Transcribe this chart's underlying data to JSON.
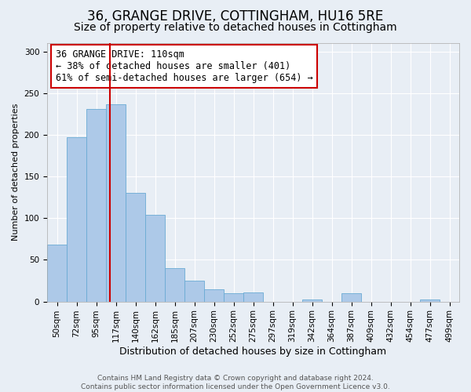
{
  "title": "36, GRANGE DRIVE, COTTINGHAM, HU16 5RE",
  "subtitle": "Size of property relative to detached houses in Cottingham",
  "xlabel": "Distribution of detached houses by size in Cottingham",
  "ylabel": "Number of detached properties",
  "footer_line1": "Contains HM Land Registry data © Crown copyright and database right 2024.",
  "footer_line2": "Contains public sector information licensed under the Open Government Licence v3.0.",
  "annotation_line1": "36 GRANGE DRIVE: 110sqm",
  "annotation_line2": "← 38% of detached houses are smaller (401)",
  "annotation_line3": "61% of semi-detached houses are larger (654) →",
  "bin_labels": [
    "50sqm",
    "72sqm",
    "95sqm",
    "117sqm",
    "140sqm",
    "162sqm",
    "185sqm",
    "207sqm",
    "230sqm",
    "252sqm",
    "275sqm",
    "297sqm",
    "319sqm",
    "342sqm",
    "364sqm",
    "387sqm",
    "409sqm",
    "432sqm",
    "454sqm",
    "477sqm",
    "499sqm"
  ],
  "bar_values": [
    68,
    197,
    231,
    237,
    130,
    104,
    40,
    25,
    15,
    10,
    11,
    0,
    0,
    2,
    0,
    10,
    0,
    0,
    0,
    2,
    0
  ],
  "bar_color": "#adc9e8",
  "bar_edge_color": "#6aaad4",
  "vline_x_index": 3,
  "vline_color": "#cc0000",
  "annotation_box_edge_color": "#cc0000",
  "ylim": [
    0,
    310
  ],
  "background_color": "#e8eef5",
  "plot_background_color": "#e8eef5",
  "grid_color": "#ffffff",
  "title_fontsize": 12,
  "subtitle_fontsize": 10,
  "xlabel_fontsize": 9,
  "ylabel_fontsize": 8,
  "tick_fontsize": 7.5,
  "annotation_fontsize": 8.5,
  "footer_fontsize": 6.5
}
